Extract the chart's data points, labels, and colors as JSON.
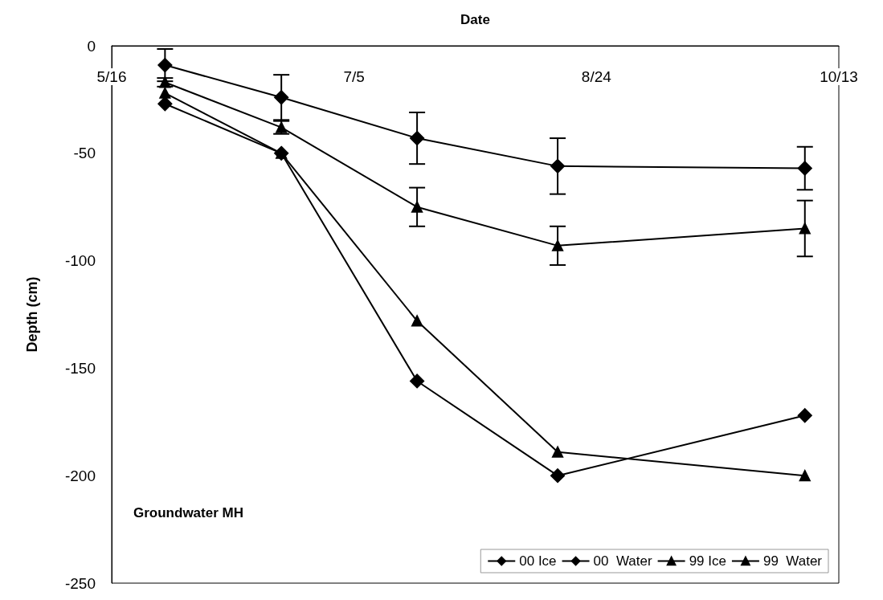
{
  "chart_data": {
    "type": "line",
    "xlabel": "Date",
    "ylabel": "Depth (cm)",
    "annotations": [
      "Groundwater MH"
    ],
    "x": [
      "--05-27",
      "--06-20",
      "--07-18",
      "--08-16",
      "--10-06"
    ],
    "xlim": [
      "--05-16",
      "--10-13"
    ],
    "xticks": [
      {
        "value": "--05-16",
        "label": "5/16"
      },
      {
        "value": "--07-05",
        "label": "7/5"
      },
      {
        "value": "--08-24",
        "label": "8/24"
      },
      {
        "value": "--10-13",
        "label": "10/13"
      }
    ],
    "ylim": [
      -250,
      0
    ],
    "yticks": [
      -250,
      -200,
      -150,
      -100,
      -50,
      0
    ],
    "grid": false,
    "legend": "bottom right",
    "line_style": "solid",
    "series": [
      {
        "name": "00 Ice",
        "color": "#000000",
        "marker": "diamond",
        "values": [
          -27,
          -50,
          -156,
          -200,
          -172
        ]
      },
      {
        "name": "00  Water",
        "color": "#000000",
        "marker": "diamond",
        "values": [
          -9,
          -24,
          -43,
          -56,
          -57
        ],
        "errors": [
          7.5,
          10.5,
          12,
          13,
          10
        ]
      },
      {
        "name": "99 Ice",
        "color": "#000000",
        "marker": "triangle",
        "values": [
          -22,
          -50,
          -128,
          -189,
          -200
        ]
      },
      {
        "name": "99  Water",
        "color": "#000000",
        "marker": "triangle",
        "values": [
          -17,
          -38,
          -75,
          -93,
          -85
        ],
        "errors": [
          2,
          3,
          9,
          9,
          13
        ]
      }
    ]
  }
}
